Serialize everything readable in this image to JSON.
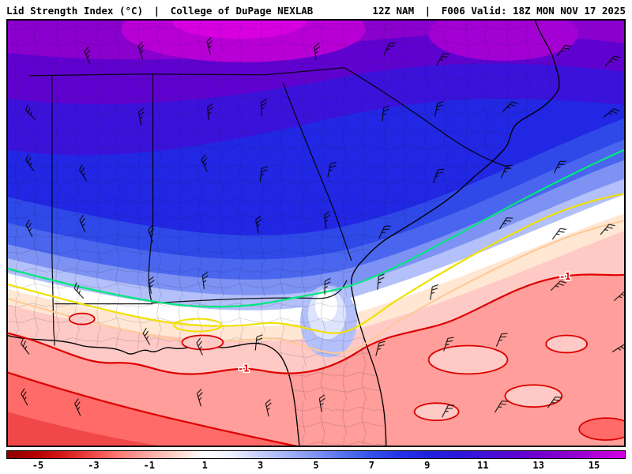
{
  "header": {
    "product": "Lid Strength Index (°C)",
    "divider": "|",
    "source": "College of DuPage NEXLAB",
    "model": "12Z NAM",
    "divider2": "|",
    "valid": "F006 Valid: 18Z MON NOV 17 2025"
  },
  "map": {
    "contour_labels": [
      {
        "text": "-1"
      },
      {
        "text": "-1"
      }
    ],
    "contour_colors": {
      "green": "#00e87d",
      "yellow": "#f0e000",
      "orange": "#ffc896",
      "red": "#dd0000"
    },
    "icons": {
      "wind_barb": "wind-barb-icon"
    }
  },
  "scale": {
    "units": "°C",
    "tick_labels": [
      "-5",
      "-3",
      "-1",
      "1",
      "3",
      "5",
      "7",
      "9",
      "11",
      "13",
      "15"
    ],
    "gradient_colors": [
      "#8c0000",
      "#b40000",
      "#d61a1a",
      "#ee4444",
      "#ff7a76",
      "#ffa8a2",
      "#ffd2c8",
      "#ffffff",
      "#eef0fd",
      "#c6cffa",
      "#a2b2f7",
      "#7d93f3",
      "#5572ee",
      "#3450ea",
      "#2433e5",
      "#2022e0",
      "#2b18dc",
      "#4110d8",
      "#5a06d2",
      "#7400ce",
      "#9000ce",
      "#b000d6",
      "#d400e0"
    ]
  }
}
